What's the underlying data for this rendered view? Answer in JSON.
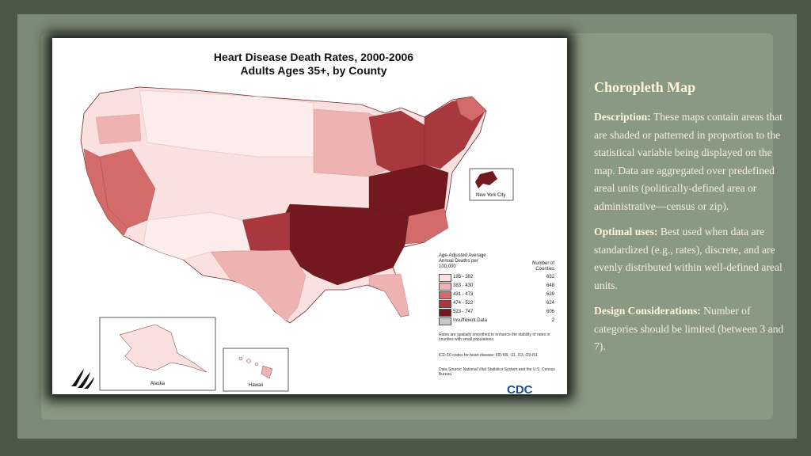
{
  "slide": {
    "heading": "Choropleth Map",
    "description_label": "Description:",
    "description_text": "These maps contain areas that are shaded or patterned in proportion to the statistical variable being displayed on the map. Data are aggregated over predefined areal units (politically-defined area or administrative—census or zip).",
    "optimal_label": "Optimal uses:",
    "optimal_text": "Best used when data are standardized (e.g., rates), discrete, and are evenly distributed within well-defined areal units.",
    "design_label": "Design Considerations:",
    "design_text": "Number of categories should be limited (between 3 and 7)."
  },
  "map": {
    "title_line1": "Heart Disease Death Rates, 2000-2006",
    "title_line2": "Adults Ages 35+, by County",
    "inset_nyc": "New York City",
    "inset_alaska": "Alaska",
    "inset_hawaii": "Hawaii",
    "legend": {
      "header": "Age-Adjusted Average Annual Deaths per 100,000",
      "counts_header": "Number of Counties",
      "classes": [
        {
          "range": "195 - 382",
          "count": "632",
          "color": "#fbe0e0"
        },
        {
          "range": "383 - 430",
          "count": "648",
          "color": "#efb2b2"
        },
        {
          "range": "431 - 473",
          "count": "629",
          "color": "#d46b6b"
        },
        {
          "range": "474 - 522",
          "count": "624",
          "color": "#a8383d"
        },
        {
          "range": "523 - 747",
          "count": "606",
          "color": "#741820"
        },
        {
          "range": "Insufficient Data",
          "count": "2",
          "color": "#c8c8c8"
        }
      ]
    },
    "note_smoothing": "Rates are spatially smoothed to enhance the stability of rates in counties with small populations.",
    "note_icd": "ICD-10 codes for heart disease: I00-I09, I11, I13, I20-I51",
    "note_source": "Data Source: National Vital Statistics System and the U.S. Census Bureau",
    "cdc_logo": "CDC"
  }
}
